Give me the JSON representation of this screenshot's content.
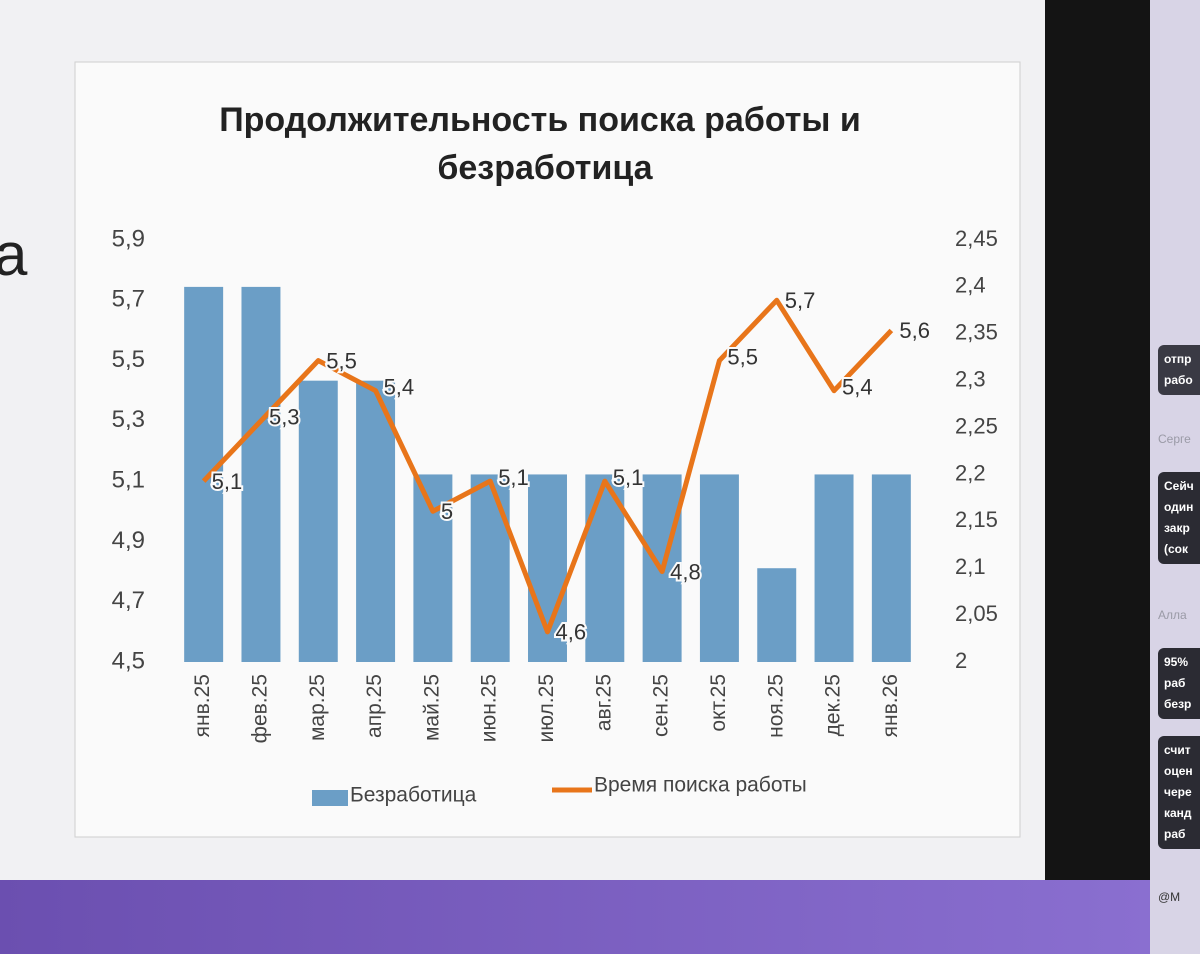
{
  "slide": {
    "fragment": "а"
  },
  "chat": {
    "messages": [
      [
        "отпр",
        "рабо"
      ],
      [
        "Сейч",
        "один",
        "закр",
        "(сок"
      ],
      [
        "95%",
        "раб",
        "безр"
      ],
      [
        "счит",
        "оцен",
        "чере",
        "канд",
        "раб"
      ]
    ],
    "authors": [
      "Серге",
      "Алла"
    ],
    "input": "@M"
  },
  "chart_data": {
    "type": "combo",
    "title": [
      "Продолжительность поиска работы и",
      "безработица"
    ],
    "categories": [
      "янв.25",
      "фев.25",
      "мар.25",
      "апр.25",
      "май.25",
      "июн.25",
      "июл.25",
      "авг.25",
      "сен.25",
      "окт.25",
      "ноя.25",
      "дек.25",
      "янв.26"
    ],
    "series": [
      {
        "name": "Безработица",
        "type": "bar",
        "axis": "y2",
        "color": "#6b9ec6",
        "values": [
          2.4,
          2.4,
          2.3,
          2.3,
          2.2,
          2.2,
          2.2,
          2.2,
          2.2,
          2.2,
          2.1,
          2.2,
          2.2
        ]
      },
      {
        "name": "Время поиска работы",
        "type": "line",
        "color": "#e8751a",
        "values": [
          5.1,
          5.3,
          5.5,
          5.4,
          5,
          5.1,
          4.6,
          5.1,
          4.8,
          5.5,
          5.7,
          5.4,
          5.6
        ],
        "value_labels": [
          "5,1",
          "5,3",
          "5,5",
          "5,4",
          "5",
          "5,1",
          "4,6",
          "5,1",
          "4,8",
          "5,5",
          "5,7",
          "5,4",
          "5,6"
        ]
      }
    ],
    "ylim": [
      4.5,
      5.9
    ],
    "yticks": [
      {
        "value": 4.5,
        "label": "4,5"
      },
      {
        "value": 4.7,
        "label": "4,7"
      },
      {
        "value": 4.9,
        "label": "4,9"
      },
      {
        "value": 5.1,
        "label": "5,1"
      },
      {
        "value": 5.3,
        "label": "5,3"
      },
      {
        "value": 5.5,
        "label": "5,5"
      },
      {
        "value": 5.7,
        "label": "5,7"
      },
      {
        "value": 5.9,
        "label": "5,9"
      }
    ],
    "y2lim": [
      2,
      2.45
    ],
    "y2ticks": [
      2,
      {
        "value": 2.05,
        "label": "2,05"
      },
      {
        "value": 2.1,
        "label": "2,1"
      },
      {
        "value": 2.15,
        "label": "2,15"
      },
      {
        "value": 2.2,
        "label": "2,2"
      },
      {
        "value": 2.25,
        "label": "2,25"
      },
      {
        "value": 2.3,
        "label": "2,3"
      },
      {
        "value": 2.35,
        "label": "2,35"
      },
      {
        "value": 2.4,
        "label": "2,4"
      },
      {
        "value": 2.45,
        "label": "2,45"
      }
    ],
    "grid": false,
    "legend": "bottom"
  }
}
